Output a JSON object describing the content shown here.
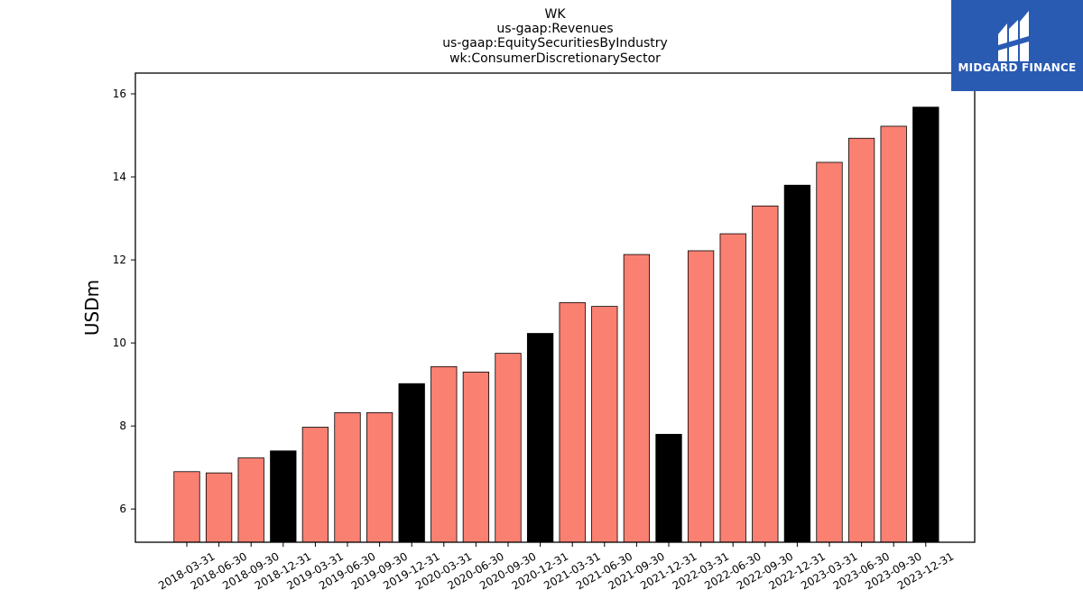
{
  "chart_data": {
    "type": "bar",
    "title_lines": [
      "WK",
      "us-gaap:Revenues",
      "us-gaap:EquitySecuritiesByIndustry",
      "wk:ConsumerDiscretionarySector"
    ],
    "xlabel": "",
    "ylabel": "USDm",
    "ylim": [
      5.2,
      16.5
    ],
    "yticks": [
      6,
      8,
      10,
      12,
      14,
      16
    ],
    "grid": false,
    "categories": [
      "2018-03-31",
      "2018-06-30",
      "2018-09-30",
      "2018-12-31",
      "2019-03-31",
      "2019-06-30",
      "2019-09-30",
      "2019-12-31",
      "2020-03-31",
      "2020-06-30",
      "2020-09-30",
      "2020-12-31",
      "2021-03-31",
      "2021-06-30",
      "2021-09-30",
      "2021-12-31",
      "2022-03-31",
      "2022-06-30",
      "2022-09-30",
      "2022-12-31",
      "2023-03-31",
      "2023-06-30",
      "2023-09-30",
      "2023-12-31"
    ],
    "values": [
      6.9,
      6.87,
      7.23,
      7.4,
      7.97,
      8.32,
      8.32,
      9.02,
      9.43,
      9.3,
      9.75,
      10.23,
      10.97,
      10.88,
      12.13,
      7.8,
      12.22,
      12.63,
      13.3,
      13.8,
      14.35,
      14.93,
      15.22,
      15.68
    ],
    "bar_colors": [
      "#fa8072",
      "#fa8072",
      "#fa8072",
      "#000000",
      "#fa8072",
      "#fa8072",
      "#fa8072",
      "#000000",
      "#fa8072",
      "#fa8072",
      "#fa8072",
      "#000000",
      "#fa8072",
      "#fa8072",
      "#fa8072",
      "#000000",
      "#fa8072",
      "#fa8072",
      "#fa8072",
      "#000000",
      "#fa8072",
      "#fa8072",
      "#fa8072",
      "#000000"
    ]
  },
  "logo": {
    "text": "MIDGARD FINANCE",
    "background": "#2a5bb3"
  }
}
